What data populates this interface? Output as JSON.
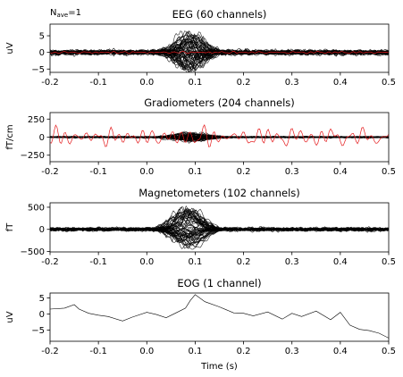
{
  "nave_label": "N",
  "nave_sub": "ave",
  "nave_value": "=1",
  "xlabel": "Time (s)",
  "chart_data": [
    {
      "type": "line",
      "title": "EEG (60 channels)",
      "ylabel": "uV",
      "xlim": [
        -0.2,
        0.5
      ],
      "ylim": [
        -6,
        8.5
      ],
      "xticks": [
        "-0.2",
        "-0.1",
        "0.0",
        "0.1",
        "0.2",
        "0.3",
        "0.4",
        "0.5"
      ],
      "yticks": [
        {
          "v": 5,
          "label": "5"
        },
        {
          "v": 0,
          "label": "0"
        },
        {
          "v": -5,
          "label": "−5"
        }
      ],
      "n_channels": 60,
      "channel_color": "#000000",
      "baseline_amplitude": 1.2,
      "response": {
        "center": 0.09,
        "width": 0.035,
        "amplitude": 5.5
      },
      "highlight": {
        "color": "#e41a1c",
        "amplitude": 0.6
      }
    },
    {
      "type": "line",
      "title": "Gradiometers (204 channels)",
      "ylabel": "fT/cm",
      "xlim": [
        -0.2,
        0.5
      ],
      "ylim": [
        -340,
        340
      ],
      "xticks": [
        "-0.2",
        "-0.1",
        "0.0",
        "0.1",
        "0.2",
        "0.3",
        "0.4",
        "0.5"
      ],
      "yticks": [
        {
          "v": 250,
          "label": "250"
        },
        {
          "v": 0,
          "label": "0"
        },
        {
          "v": -250,
          "label": "−250"
        }
      ],
      "n_channels": 204,
      "channel_color": "#000000",
      "baseline_amplitude": 18,
      "response": {
        "center": 0.09,
        "width": 0.04,
        "amplitude": 55
      },
      "highlight": {
        "color": "#e41a1c",
        "amplitude": 250
      }
    },
    {
      "type": "line",
      "title": "Magnetometers (102 channels)",
      "ylabel": "fT",
      "xlim": [
        -0.2,
        0.5
      ],
      "ylim": [
        -510,
        600
      ],
      "xticks": [
        "-0.2",
        "-0.1",
        "0.0",
        "0.1",
        "0.2",
        "0.3",
        "0.4",
        "0.5"
      ],
      "yticks": [
        {
          "v": 500,
          "label": "500"
        },
        {
          "v": 0,
          "label": "0"
        },
        {
          "v": -500,
          "label": "−500"
        }
      ],
      "n_channels": 102,
      "channel_color": "#000000",
      "baseline_amplitude": 70,
      "response": {
        "center": 0.085,
        "width": 0.035,
        "amplitude": 450
      }
    },
    {
      "type": "line",
      "title": "EOG (1 channel)",
      "ylabel": "uV",
      "xlim": [
        -0.2,
        0.5
      ],
      "ylim": [
        -8.5,
        6.5
      ],
      "xticks": [
        "-0.2",
        "-0.1",
        "0.0",
        "0.1",
        "0.2",
        "0.3",
        "0.4",
        "0.5"
      ],
      "yticks": [
        {
          "v": 5,
          "label": "5"
        },
        {
          "v": 0,
          "label": "0"
        },
        {
          "v": -5,
          "label": "−5"
        }
      ],
      "n_channels": 1,
      "channel_color": "#000000",
      "series": [
        {
          "x": [
            -0.2,
            -0.17,
            -0.15,
            -0.14,
            -0.12,
            -0.1,
            -0.08,
            -0.05,
            -0.03,
            0.0,
            0.02,
            0.04,
            0.06,
            0.08,
            0.09,
            0.1,
            0.12,
            0.15,
            0.18,
            0.2,
            0.22,
            0.25,
            0.28,
            0.3,
            0.32,
            0.35,
            0.38,
            0.4,
            0.42,
            0.44,
            0.46,
            0.48,
            0.5
          ],
          "y": [
            1.5,
            1.8,
            2.9,
            1.5,
            0.2,
            -0.4,
            -0.8,
            -2.2,
            -1.0,
            0.5,
            -0.2,
            -1.2,
            0.3,
            1.8,
            4.2,
            6.0,
            3.8,
            2.2,
            0.3,
            0.2,
            -0.6,
            0.6,
            -1.6,
            0.2,
            -0.8,
            0.9,
            -1.8,
            0.5,
            -3.5,
            -4.8,
            -5.2,
            -6.0,
            -7.5
          ]
        }
      ]
    }
  ]
}
